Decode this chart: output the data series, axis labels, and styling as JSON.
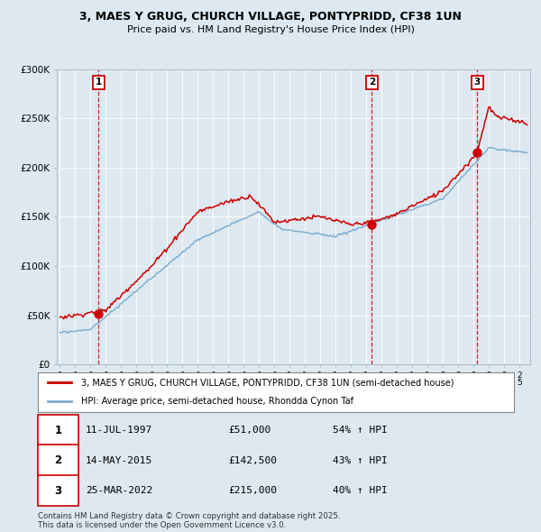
{
  "title": "3, MAES Y GRUG, CHURCH VILLAGE, PONTYPRIDD, CF38 1UN",
  "subtitle": "Price paid vs. HM Land Registry's House Price Index (HPI)",
  "ylim": [
    0,
    300000
  ],
  "yticks": [
    0,
    50000,
    100000,
    150000,
    200000,
    250000,
    300000
  ],
  "ytick_labels": [
    "£0",
    "£50K",
    "£100K",
    "£150K",
    "£200K",
    "£250K",
    "£300K"
  ],
  "xlim_start": 1994.8,
  "xlim_end": 2025.7,
  "bg_color": "#dde8f0",
  "plot_bg": "#dde8f0",
  "red_color": "#cc0000",
  "blue_color": "#7aabcf",
  "transaction_dates": [
    1997.53,
    2015.37,
    2022.23
  ],
  "transaction_prices": [
    51000,
    142500,
    215000
  ],
  "transaction_labels": [
    "1",
    "2",
    "3"
  ],
  "legend_line1": "3, MAES Y GRUG, CHURCH VILLAGE, PONTYPRIDD, CF38 1UN (semi-detached house)",
  "legend_line2": "HPI: Average price, semi-detached house, Rhondda Cynon Taf",
  "table_rows": [
    [
      "1",
      "11-JUL-1997",
      "£51,000",
      "54% ↑ HPI"
    ],
    [
      "2",
      "14-MAY-2015",
      "£142,500",
      "43% ↑ HPI"
    ],
    [
      "3",
      "25-MAR-2022",
      "£215,000",
      "40% ↑ HPI"
    ]
  ],
  "footer": "Contains HM Land Registry data © Crown copyright and database right 2025.\nThis data is licensed under the Open Government Licence v3.0."
}
